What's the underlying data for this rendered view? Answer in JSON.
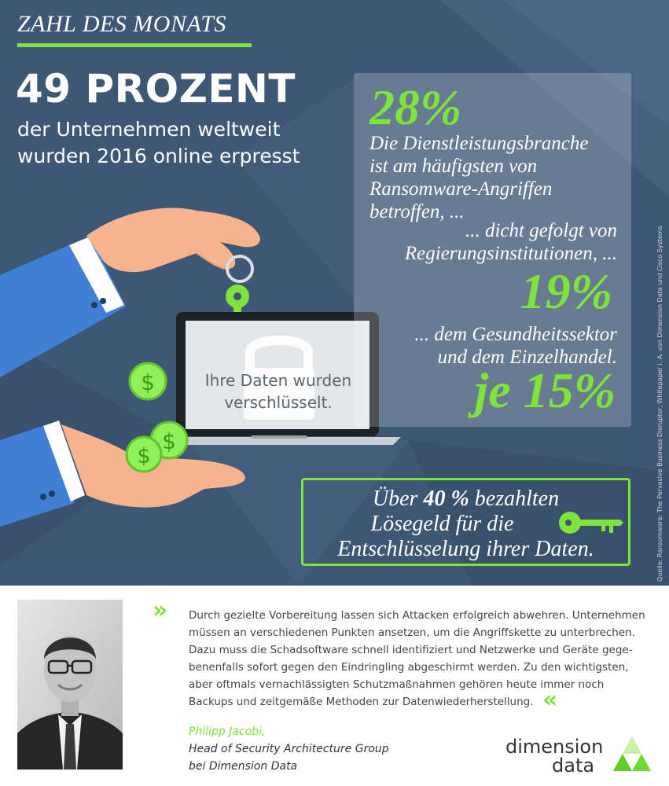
{
  "header": {
    "kicker": "ZAHL DES MONATS",
    "headline": "49 PROZENT",
    "subline": [
      "der Unternehmen weltweit",
      "wurden 2016 online erpresst"
    ]
  },
  "stats": {
    "first_pct": "28%",
    "first_text": [
      "Die Dienstleistungsbranche",
      "ist am häufigsten von",
      "Ransomware-Angriffen",
      "betroffen, ..."
    ],
    "second_text": [
      "... dicht gefolgt von",
      "Regierungsinstitutionen, ..."
    ],
    "second_pct": "19%",
    "third_text": [
      "... dem Gesundheitssektor",
      "und dem Einzelhandel."
    ],
    "third_pct": "je 15%"
  },
  "laptop": {
    "screen_text": [
      "Ihre Daten wurden",
      "verschlüsselt."
    ]
  },
  "callout": {
    "line1_pre": "Über ",
    "line1_bold": "40 %",
    "line1_post": " bezahlten",
    "line2": "Lösegeld für die",
    "line3": "Entschlüsselung ihrer Daten."
  },
  "source": "Quelle: Ransomware: The Pervasive Business Disruptor, Whitepaper i. A. von Dimension Data und Cisco Systems",
  "quote": {
    "lines": [
      "Durch gezielte Vorbereitung lassen sich Attacken erfolgreich abwehren. Unternehmen",
      "müssen an verschiedenen Punkten ansetzen, um die Angriffskette zu unterbrechen.",
      "Dazu muss die Schadsoftware schnell identifiziert und Netzwerke und Geräte gege-",
      "benenfalls sofort gegen den Eindringling abgeschirmt werden. Zu den wichtigsten,",
      "aber oftmals vernachlässigten Schutzmaßnahmen gehören heute immer noch",
      "Backups und zeitgemäße Methoden zur Datenwiederherstellung."
    ],
    "open_mark": "»",
    "close_mark": "«",
    "name": "Philipp Jacobi,",
    "role": [
      "Head of Security Architecture Group",
      "bei Dimension Data"
    ]
  },
  "logo": {
    "line1": "dimension",
    "line2": "data"
  },
  "colors": {
    "background": "#3d5775",
    "accent_green": "#7ee33a",
    "sleeve_blue": "#3f7fd4",
    "skin": "#f6b38e"
  },
  "icons": [
    "dollar-coin-icon",
    "padlock-icon",
    "key-icon",
    "quote-chevron-icon",
    "dimension-data-triangle-logo"
  ]
}
